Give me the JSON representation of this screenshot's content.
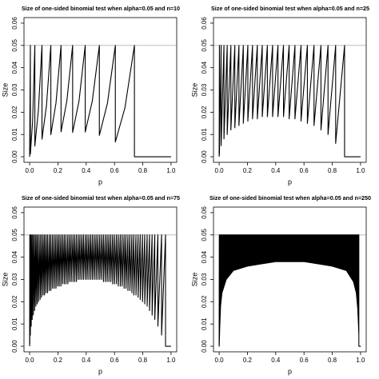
{
  "chart_data": [
    {
      "type": "line",
      "title": "Size of one-sided binomial test when alpha=0.05 and n=10",
      "xlabel": "p",
      "ylabel": "Size",
      "color": "#000000",
      "hline": 0.05,
      "hline_color": "#bebebe",
      "xlim": [
        -0.04,
        1.04
      ],
      "ylim": [
        -0.0025,
        0.0625
      ],
      "xticks": [
        {
          "value": 0,
          "label": "0.0"
        },
        {
          "value": 0.2,
          "label": "0.2"
        },
        {
          "value": 0.4,
          "label": "0.4"
        },
        {
          "value": 0.6,
          "label": "0.6"
        },
        {
          "value": 0.8,
          "label": "0.8"
        },
        {
          "value": 1,
          "label": "1.0"
        }
      ],
      "yticks": [
        {
          "value": 0,
          "label": "0.00"
        },
        {
          "value": 0.01,
          "label": "0.01"
        },
        {
          "value": 0.02,
          "label": "0.02"
        },
        {
          "value": 0.03,
          "label": "0.03"
        },
        {
          "value": 0.04,
          "label": "0.04"
        },
        {
          "value": 0.05,
          "label": "0.05"
        },
        {
          "value": 0.06,
          "label": "0.06"
        }
      ],
      "x": [
        0,
        0.0051,
        0.0051,
        0.021,
        0.0368,
        0.0368,
        0.062,
        0.0873,
        0.0873,
        0.119,
        0.15,
        0.15,
        0.186,
        0.222,
        0.222,
        0.263,
        0.304,
        0.304,
        0.349,
        0.393,
        0.393,
        0.443,
        0.493,
        0.493,
        0.55,
        0.606,
        0.606,
        0.674,
        0.741,
        0.741,
        1
      ],
      "values": [
        0,
        0.05,
        0.0012,
        0.016,
        0.05,
        0.0048,
        0.021,
        0.05,
        0.0079,
        0.023,
        0.05,
        0.0099,
        0.024,
        0.05,
        0.0112,
        0.025,
        0.05,
        0.0109,
        0.025,
        0.05,
        0.0111,
        0.025,
        0.05,
        0.0096,
        0.024,
        0.05,
        0.0066,
        0.022,
        0.05,
        0,
        0
      ]
    },
    {
      "type": "line",
      "title": "Size of one-sided binomial test when alpha=0.05 and n=25",
      "xlabel": "p",
      "ylabel": "Size",
      "color": "#000000",
      "hline": 0.05,
      "hline_color": "#bebebe",
      "xlim": [
        -0.04,
        1.04
      ],
      "ylim": [
        -0.0025,
        0.0625
      ],
      "xticks": [
        {
          "value": 0,
          "label": "0.0"
        },
        {
          "value": 0.2,
          "label": "0.2"
        },
        {
          "value": 0.4,
          "label": "0.4"
        },
        {
          "value": 0.6,
          "label": "0.6"
        },
        {
          "value": 0.8,
          "label": "0.8"
        },
        {
          "value": 1,
          "label": "1.0"
        }
      ],
      "yticks": [
        {
          "value": 0,
          "label": "0.00"
        },
        {
          "value": 0.01,
          "label": "0.01"
        },
        {
          "value": 0.02,
          "label": "0.02"
        },
        {
          "value": 0.03,
          "label": "0.03"
        },
        {
          "value": 0.04,
          "label": "0.04"
        },
        {
          "value": 0.05,
          "label": "0.05"
        },
        {
          "value": 0.06,
          "label": "0.06"
        }
      ],
      "x": [
        0,
        0.002,
        0.002,
        0.014,
        0.014,
        0.034,
        0.034,
        0.057,
        0.057,
        0.083,
        0.083,
        0.111,
        0.111,
        0.14,
        0.14,
        0.171,
        0.171,
        0.203,
        0.203,
        0.236,
        0.236,
        0.27,
        0.27,
        0.305,
        0.305,
        0.341,
        0.341,
        0.378,
        0.378,
        0.416,
        0.416,
        0.455,
        0.455,
        0.495,
        0.495,
        0.536,
        0.536,
        0.579,
        0.579,
        0.624,
        0.624,
        0.671,
        0.671,
        0.72,
        0.72,
        0.77,
        0.77,
        0.824,
        0.824,
        0.887,
        0.887,
        1
      ],
      "values": [
        0,
        0.05,
        0.001,
        0.05,
        0.005,
        0.05,
        0.008,
        0.05,
        0.01,
        0.05,
        0.012,
        0.05,
        0.013,
        0.05,
        0.014,
        0.05,
        0.015,
        0.05,
        0.016,
        0.05,
        0.017,
        0.05,
        0.017,
        0.05,
        0.018,
        0.05,
        0.018,
        0.05,
        0.018,
        0.05,
        0.018,
        0.05,
        0.018,
        0.05,
        0.017,
        0.05,
        0.017,
        0.05,
        0.016,
        0.05,
        0.015,
        0.05,
        0.014,
        0.05,
        0.012,
        0.05,
        0.01,
        0.05,
        0.006,
        0.05,
        0,
        0
      ]
    },
    {
      "type": "line",
      "title": "Size of one-sided binomial test when alpha=0.05 and n=75",
      "xlabel": "p",
      "ylabel": "Size",
      "color": "#000000",
      "hline": 0.05,
      "hline_color": "#bebebe",
      "xlim": [
        -0.04,
        1.04
      ],
      "ylim": [
        -0.0025,
        0.0625
      ],
      "xticks": [
        {
          "value": 0,
          "label": "0.0"
        },
        {
          "value": 0.2,
          "label": "0.2"
        },
        {
          "value": 0.4,
          "label": "0.4"
        },
        {
          "value": 0.6,
          "label": "0.6"
        },
        {
          "value": 0.8,
          "label": "0.8"
        },
        {
          "value": 1,
          "label": "1.0"
        }
      ],
      "yticks": [
        {
          "value": 0,
          "label": "0.00"
        },
        {
          "value": 0.01,
          "label": "0.01"
        },
        {
          "value": 0.02,
          "label": "0.02"
        },
        {
          "value": 0.03,
          "label": "0.03"
        },
        {
          "value": 0.04,
          "label": "0.04"
        },
        {
          "value": 0.05,
          "label": "0.05"
        },
        {
          "value": 0.06,
          "label": "0.06"
        }
      ],
      "x": [
        0,
        0.001,
        0.001,
        0.005,
        0.005,
        0.011,
        0.011,
        0.018,
        0.018,
        0.026,
        0.026,
        0.035,
        0.035,
        0.044,
        0.044,
        0.053,
        0.053,
        0.063,
        0.063,
        0.074,
        0.074,
        0.084,
        0.084,
        0.095,
        0.095,
        0.105,
        0.105,
        0.116,
        0.116,
        0.127,
        0.127,
        0.139,
        0.139,
        0.15,
        0.15,
        0.162,
        0.162,
        0.174,
        0.174,
        0.186,
        0.186,
        0.198,
        0.198,
        0.209,
        0.209,
        0.221,
        0.221,
        0.233,
        0.233,
        0.245,
        0.245,
        0.257,
        0.257,
        0.27,
        0.27,
        0.282,
        0.282,
        0.294,
        0.294,
        0.307,
        0.307,
        0.319,
        0.319,
        0.331,
        0.331,
        0.344,
        0.344,
        0.356,
        0.356,
        0.369,
        0.369,
        0.381,
        0.381,
        0.394,
        0.394,
        0.406,
        0.406,
        0.419,
        0.419,
        0.432,
        0.432,
        0.444,
        0.444,
        0.457,
        0.457,
        0.47,
        0.47,
        0.483,
        0.483,
        0.496,
        0.496,
        0.509,
        0.509,
        0.522,
        0.522,
        0.535,
        0.535,
        0.548,
        0.548,
        0.561,
        0.561,
        0.574,
        0.574,
        0.587,
        0.587,
        0.6,
        0.6,
        0.614,
        0.614,
        0.627,
        0.627,
        0.641,
        0.641,
        0.654,
        0.654,
        0.668,
        0.668,
        0.681,
        0.681,
        0.695,
        0.695,
        0.709,
        0.709,
        0.723,
        0.723,
        0.737,
        0.737,
        0.752,
        0.752,
        0.767,
        0.767,
        0.782,
        0.782,
        0.798,
        0.798,
        0.814,
        0.814,
        0.831,
        0.831,
        0.848,
        0.848,
        0.866,
        0.866,
        0.885,
        0.885,
        0.907,
        0.907,
        0.933,
        0.933,
        0.961,
        0.961,
        1
      ],
      "values": [
        0,
        0.05,
        0.001,
        0.05,
        0.005,
        0.05,
        0.009,
        0.05,
        0.012,
        0.05,
        0.014,
        0.05,
        0.016,
        0.05,
        0.018,
        0.05,
        0.019,
        0.05,
        0.02,
        0.05,
        0.021,
        0.05,
        0.022,
        0.05,
        0.023,
        0.05,
        0.023,
        0.05,
        0.024,
        0.05,
        0.024,
        0.05,
        0.025,
        0.05,
        0.025,
        0.05,
        0.026,
        0.05,
        0.026,
        0.05,
        0.026,
        0.05,
        0.027,
        0.05,
        0.027,
        0.05,
        0.027,
        0.05,
        0.028,
        0.05,
        0.028,
        0.05,
        0.028,
        0.05,
        0.028,
        0.05,
        0.029,
        0.05,
        0.029,
        0.05,
        0.029,
        0.05,
        0.029,
        0.05,
        0.029,
        0.05,
        0.03,
        0.05,
        0.03,
        0.05,
        0.03,
        0.05,
        0.03,
        0.05,
        0.03,
        0.05,
        0.03,
        0.05,
        0.03,
        0.05,
        0.03,
        0.05,
        0.03,
        0.05,
        0.03,
        0.05,
        0.03,
        0.05,
        0.03,
        0.05,
        0.03,
        0.05,
        0.03,
        0.05,
        0.029,
        0.05,
        0.029,
        0.05,
        0.029,
        0.05,
        0.029,
        0.05,
        0.029,
        0.05,
        0.028,
        0.05,
        0.028,
        0.05,
        0.028,
        0.05,
        0.027,
        0.05,
        0.027,
        0.05,
        0.027,
        0.05,
        0.026,
        0.05,
        0.026,
        0.05,
        0.025,
        0.05,
        0.025,
        0.05,
        0.024,
        0.05,
        0.023,
        0.05,
        0.023,
        0.05,
        0.022,
        0.05,
        0.021,
        0.05,
        0.02,
        0.05,
        0.019,
        0.05,
        0.018,
        0.05,
        0.016,
        0.05,
        0.014,
        0.05,
        0.012,
        0.05,
        0.009,
        0.05,
        0.005,
        0.05,
        0,
        0
      ]
    },
    {
      "type": "area",
      "title": "Size of one-sided binomial test when alpha=0.05 and n=250",
      "xlabel": "p",
      "ylabel": "Size",
      "color": "#000000",
      "hline": 0.05,
      "hline_color": "#bebebe",
      "xlim": [
        -0.04,
        1.04
      ],
      "ylim": [
        -0.0025,
        0.0625
      ],
      "xticks": [
        {
          "value": 0,
          "label": "0.0"
        },
        {
          "value": 0.2,
          "label": "0.2"
        },
        {
          "value": 0.4,
          "label": "0.4"
        },
        {
          "value": 0.6,
          "label": "0.6"
        },
        {
          "value": 0.8,
          "label": "0.8"
        },
        {
          "value": 1,
          "label": "1.0"
        }
      ],
      "yticks": [
        {
          "value": 0,
          "label": "0.00"
        },
        {
          "value": 0.01,
          "label": "0.01"
        },
        {
          "value": 0.02,
          "label": "0.02"
        },
        {
          "value": 0.03,
          "label": "0.03"
        },
        {
          "value": 0.04,
          "label": "0.04"
        },
        {
          "value": 0.05,
          "label": "0.05"
        },
        {
          "value": 0.06,
          "label": "0.06"
        }
      ],
      "x": [
        0,
        0.001,
        0.004,
        0.01,
        0.02,
        0.05,
        0.1,
        0.2,
        0.3,
        0.4,
        0.5,
        0.6,
        0.7,
        0.8,
        0.9,
        0.95,
        0.97,
        0.98,
        0.985,
        0.988,
        0.988,
        1
      ],
      "low": [
        0,
        0.001,
        0.008,
        0.018,
        0.024,
        0.03,
        0.034,
        0.036,
        0.037,
        0.038,
        0.038,
        0.038,
        0.037,
        0.036,
        0.034,
        0.029,
        0.024,
        0.017,
        0.01,
        0.005,
        0,
        0
      ],
      "high": [
        0,
        0.05,
        0.05,
        0.05,
        0.05,
        0.05,
        0.05,
        0.05,
        0.05,
        0.05,
        0.05,
        0.05,
        0.05,
        0.05,
        0.05,
        0.05,
        0.05,
        0.05,
        0.05,
        0.05,
        0,
        0
      ]
    }
  ]
}
